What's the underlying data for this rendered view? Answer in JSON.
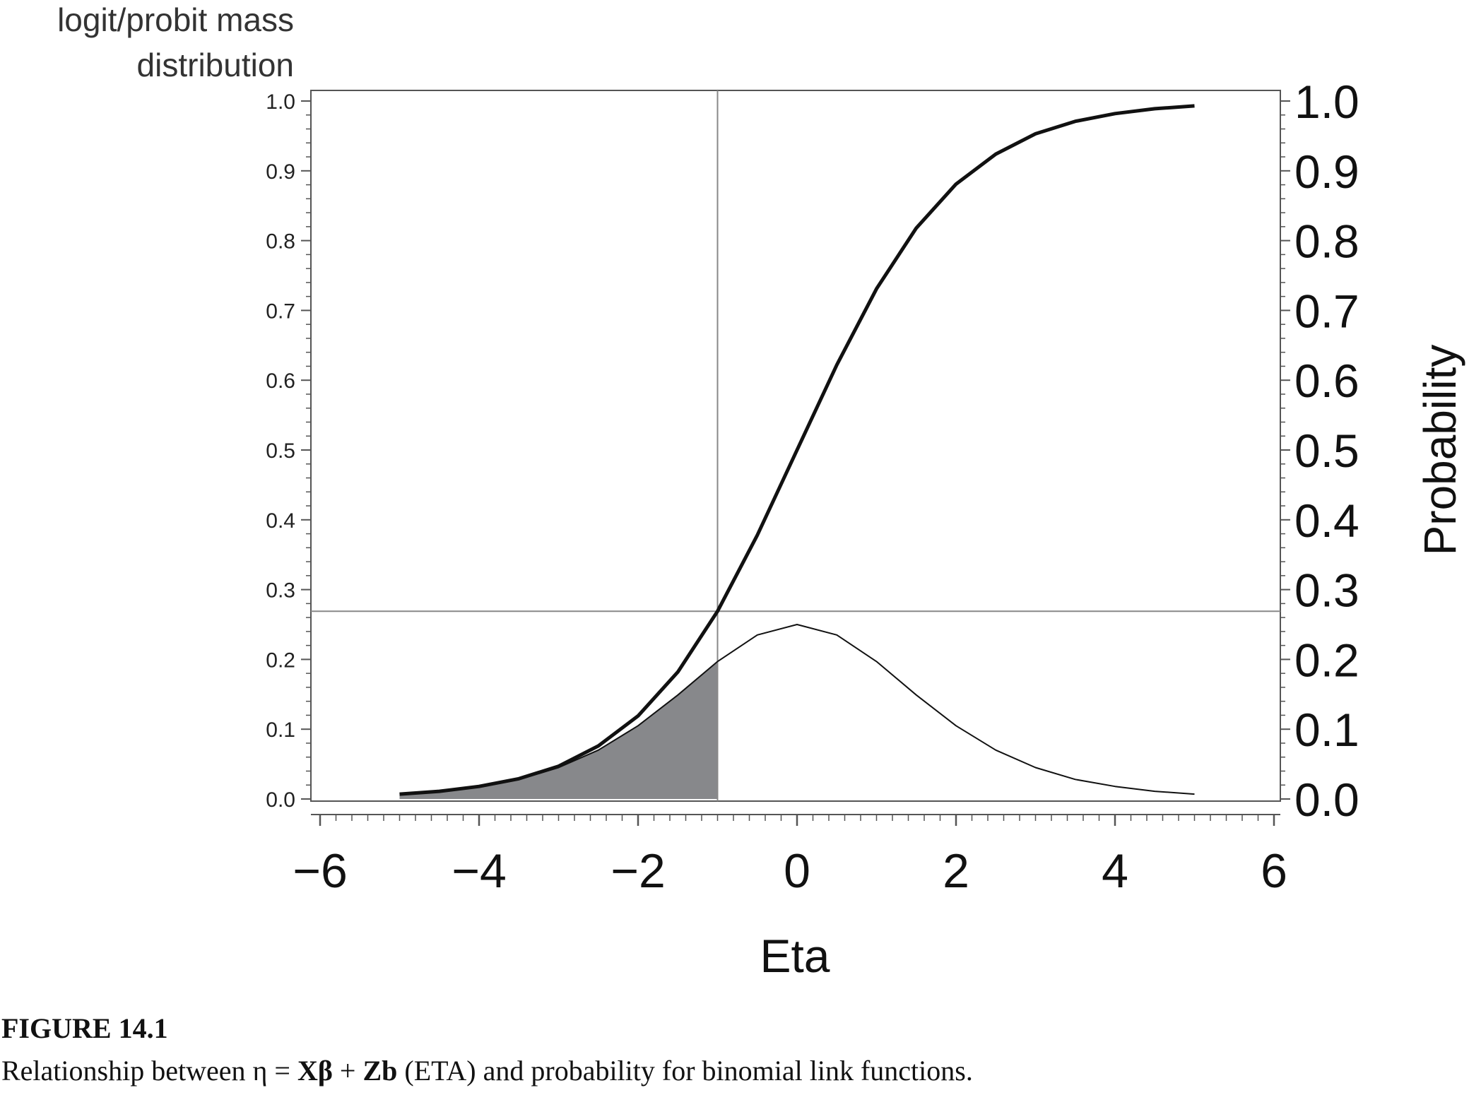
{
  "chart_data": {
    "type": "line",
    "left_axis_title_line1": "logit/probit  mass",
    "left_axis_title_line2": "distribution",
    "right_axis_title": "Probability",
    "xlabel": "Eta",
    "xlim": [
      -6,
      6
    ],
    "ylim": [
      0,
      1
    ],
    "x_ticks": [
      {
        "value": -6,
        "label": "−6"
      },
      {
        "value": -4,
        "label": "−4"
      },
      {
        "value": -2,
        "label": "−2"
      },
      {
        "value": 0,
        "label": "0"
      },
      {
        "value": 2,
        "label": "2"
      },
      {
        "value": 4,
        "label": "4"
      },
      {
        "value": 6,
        "label": "6"
      }
    ],
    "left_y_ticks": [
      "0.0",
      "0.1",
      "0.2",
      "0.3",
      "0.4",
      "0.5",
      "0.6",
      "0.7",
      "0.8",
      "0.9",
      "1.0"
    ],
    "right_y_ticks": [
      "0.0",
      "0.1",
      "0.2",
      "0.3",
      "0.4",
      "0.5",
      "0.6",
      "0.7",
      "0.8",
      "0.9",
      "1.0"
    ],
    "y_tick_values": [
      0,
      0.1,
      0.2,
      0.3,
      0.4,
      0.5,
      0.6,
      0.7,
      0.8,
      0.9,
      1.0
    ],
    "series": [
      {
        "id": "cdf",
        "x": [
          -5,
          -4.5,
          -4,
          -3.5,
          -3,
          -2.5,
          -2,
          -1.5,
          -1,
          -0.5,
          0,
          0.5,
          1,
          1.5,
          2,
          2.5,
          3,
          3.5,
          4,
          4.5,
          5
        ],
        "y": [
          0.007,
          0.011,
          0.018,
          0.029,
          0.047,
          0.076,
          0.119,
          0.182,
          0.269,
          0.378,
          0.5,
          0.622,
          0.731,
          0.818,
          0.881,
          0.924,
          0.953,
          0.971,
          0.982,
          0.989,
          0.993
        ]
      },
      {
        "id": "density",
        "x": [
          -5,
          -4.5,
          -4,
          -3.5,
          -3,
          -2.5,
          -2,
          -1.5,
          -1,
          -0.5,
          0,
          0.5,
          1,
          1.5,
          2,
          2.5,
          3,
          3.5,
          4,
          4.5,
          5
        ],
        "y": [
          0.007,
          0.011,
          0.018,
          0.028,
          0.045,
          0.07,
          0.105,
          0.149,
          0.197,
          0.235,
          0.25,
          0.235,
          0.197,
          0.149,
          0.105,
          0.07,
          0.045,
          0.028,
          0.018,
          0.011,
          0.007
        ]
      }
    ],
    "reference_lines": {
      "vertical_x": -1,
      "horizontal_y": 0.269
    },
    "shaded_region": {
      "series": "density",
      "from_x": -5,
      "to_x": -1,
      "color": "#87888b"
    },
    "colors": {
      "curve": "#111111",
      "reference": "#888888",
      "frame": "#555555",
      "shade": "#87888b"
    }
  },
  "caption": {
    "label": "FIGURE 14.1",
    "text_before": "Relationship between η = ",
    "formula_bold_1": "Xβ",
    "plus": " + ",
    "formula_bold_2": "Zb",
    "text_after": " (ETA) and probability for binomial link functions."
  }
}
